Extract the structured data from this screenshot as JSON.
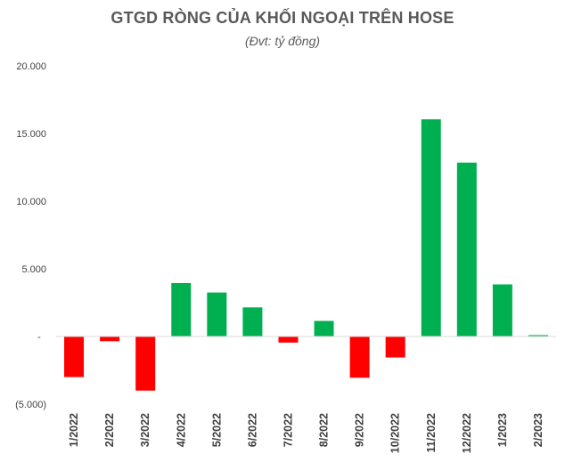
{
  "chart_data": {
    "type": "bar",
    "title": "GTGD RÒNG CỦA KHỐI NGOẠI TRÊN HOSE",
    "subtitle": "(Đvt: tỷ đồng)",
    "xlabel": "",
    "ylabel": "",
    "categories": [
      "1/2022",
      "2/2022",
      "3/2022",
      "4/2022",
      "5/2022",
      "6/2022",
      "7/2022",
      "8/2022",
      "9/2022",
      "10/2022",
      "11/2022",
      "12/2022",
      "1/2023",
      "2/2023"
    ],
    "values": [
      -3000,
      -350,
      -4000,
      3950,
      3250,
      2150,
      -450,
      1150,
      -3050,
      -1550,
      16050,
      12850,
      3850,
      100
    ],
    "ylim": [
      -5000,
      20000
    ],
    "yticks": [
      {
        "value": 20000,
        "label": "20.000"
      },
      {
        "value": 15000,
        "label": "15.000"
      },
      {
        "value": 10000,
        "label": "10.000"
      },
      {
        "value": 5000,
        "label": "5.000"
      },
      {
        "value": 0,
        "label": "-"
      },
      {
        "value": -5000,
        "label": "(5.000)"
      }
    ],
    "grid": false,
    "legend": "none",
    "colors": {
      "positive": "#00b050",
      "negative": "#ff0000"
    }
  }
}
